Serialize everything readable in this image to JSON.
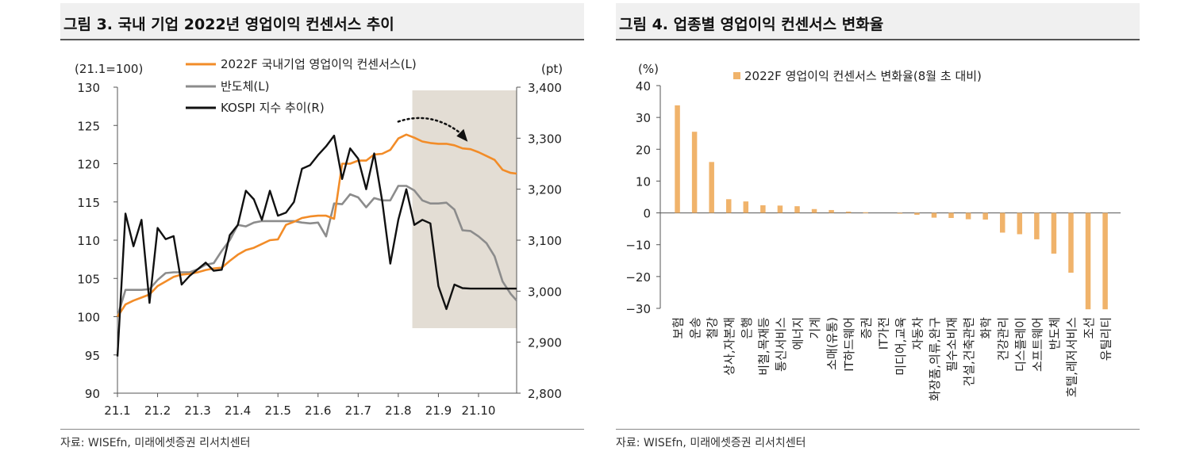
{
  "figures": {
    "left": {
      "title": "그림 3. 국내 기업 2022년 영업이익 컨센서스 추이",
      "source": "자료: WISEfn, 미래에셋증권 리서치센터"
    },
    "right": {
      "title": "그림 4. 업종별 영업이익 컨센서스 변화율",
      "source": "자료: WISEfn, 미래에셋증권 리서치센터"
    }
  },
  "colors": {
    "orange": "#f28c28",
    "gray": "#8c8c8c",
    "black": "#111111",
    "shade": "#e3ddd4",
    "bar": "#f0b36b"
  },
  "chart_data": [
    {
      "type": "line",
      "title": "그림 3. 국내 기업 2022년 영업이익 컨센서스 추이",
      "left_axis_label": "(21.1=100)",
      "right_axis_label": "(pt)",
      "ylim_left": [
        90,
        130
      ],
      "yticks_left": [
        90,
        95,
        100,
        105,
        110,
        115,
        120,
        125,
        130
      ],
      "ylim_right": [
        2800,
        3400
      ],
      "yticks_right": [
        "2,800",
        "2,900",
        "3,000",
        "3,100",
        "3,200",
        "3,300",
        "3,400"
      ],
      "yticks_right_values": [
        2800,
        2900,
        3000,
        3100,
        3200,
        3300,
        3400
      ],
      "x_tick_labels": [
        "21.1",
        "21.2",
        "21.3",
        "21.4",
        "21.5",
        "21.6",
        "21.7",
        "21.8",
        "21.9",
        "21.10"
      ],
      "x_range": [
        0,
        9.95
      ],
      "shaded_region": [
        7.35,
        9.95
      ],
      "arrow": {
        "from": [
          7.0,
          125.5
        ],
        "to": [
          8.65,
          123.5
        ]
      },
      "series": [
        {
          "name": "2022F 국내기업 영업이익 컨센서스(L)",
          "axis": "left",
          "color": "#f28c28",
          "x": [
            0.0,
            0.2,
            0.4,
            0.6,
            0.8,
            1.0,
            1.2,
            1.4,
            1.6,
            1.8,
            2.0,
            2.2,
            2.4,
            2.6,
            2.8,
            3.0,
            3.2,
            3.4,
            3.6,
            3.8,
            4.0,
            4.2,
            4.4,
            4.6,
            4.8,
            5.0,
            5.2,
            5.4,
            5.6,
            5.8,
            6.0,
            6.2,
            6.4,
            6.6,
            6.8,
            7.0,
            7.2,
            7.4,
            7.6,
            7.8,
            8.0,
            8.2,
            8.4,
            8.6,
            8.8,
            9.0,
            9.2,
            9.4,
            9.6,
            9.8,
            9.95
          ],
          "values": [
            100.0,
            101.6,
            102.1,
            102.5,
            102.9,
            104.0,
            104.6,
            105.2,
            105.5,
            105.6,
            105.8,
            106.1,
            106.3,
            106.4,
            107.3,
            108.1,
            108.7,
            109.0,
            109.5,
            110.0,
            110.1,
            112.0,
            112.4,
            112.9,
            113.1,
            113.2,
            113.2,
            112.8,
            120.0,
            120.0,
            120.4,
            120.4,
            121.2,
            121.3,
            121.8,
            123.3,
            123.8,
            123.4,
            122.9,
            122.7,
            122.6,
            122.6,
            122.4,
            122.0,
            121.9,
            121.5,
            121.0,
            120.5,
            119.2,
            118.8,
            118.7
          ]
        },
        {
          "name": "반도체(L)",
          "axis": "left",
          "color": "#8c8c8c",
          "x": [
            0.0,
            0.2,
            0.4,
            0.6,
            0.8,
            1.0,
            1.2,
            1.4,
            1.6,
            1.8,
            2.0,
            2.2,
            2.4,
            2.6,
            2.8,
            3.0,
            3.2,
            3.4,
            3.6,
            3.8,
            4.0,
            4.2,
            4.4,
            4.6,
            4.8,
            5.0,
            5.2,
            5.4,
            5.6,
            5.8,
            6.0,
            6.2,
            6.4,
            6.6,
            6.8,
            7.0,
            7.2,
            7.4,
            7.6,
            7.8,
            8.0,
            8.2,
            8.4,
            8.6,
            8.8,
            9.0,
            9.2,
            9.4,
            9.6,
            9.8,
            9.95
          ],
          "values": [
            100.0,
            103.5,
            103.5,
            103.5,
            103.6,
            104.8,
            105.7,
            105.8,
            105.8,
            105.8,
            106.2,
            106.8,
            107.0,
            108.6,
            110.0,
            112.0,
            111.8,
            112.3,
            112.5,
            112.5,
            112.5,
            112.5,
            112.5,
            112.3,
            112.2,
            112.3,
            110.5,
            114.8,
            114.7,
            116.0,
            115.6,
            114.3,
            115.5,
            115.2,
            115.2,
            117.1,
            117.1,
            116.5,
            115.2,
            114.8,
            114.8,
            114.9,
            114.0,
            111.3,
            111.2,
            110.5,
            109.6,
            107.9,
            104.6,
            103.0,
            102.1
          ]
        },
        {
          "name": "KOSPI 지수 추이(R)",
          "axis": "right",
          "color": "#111111",
          "x": [
            0.0,
            0.2,
            0.4,
            0.6,
            0.8,
            1.0,
            1.2,
            1.4,
            1.6,
            1.8,
            2.0,
            2.2,
            2.4,
            2.6,
            2.8,
            3.0,
            3.2,
            3.4,
            3.6,
            3.8,
            4.0,
            4.2,
            4.4,
            4.6,
            4.8,
            5.0,
            5.2,
            5.4,
            5.6,
            5.8,
            6.0,
            6.2,
            6.4,
            6.6,
            6.8,
            7.0,
            7.2,
            7.4,
            7.6,
            7.8,
            8.0,
            8.2,
            8.4,
            8.6,
            8.8,
            9.0,
            9.2,
            9.4,
            9.6,
            9.8,
            9.95
          ],
          "values": [
            2872,
            3152,
            3088,
            3140,
            2977,
            3124,
            3102,
            3108,
            3013,
            3030,
            3043,
            3056,
            3040,
            3042,
            3110,
            3130,
            3197,
            3180,
            3140,
            3197,
            3148,
            3154,
            3175,
            3240,
            3247,
            3267,
            3284,
            3305,
            3220,
            3280,
            3260,
            3200,
            3270,
            3177,
            3054,
            3140,
            3200,
            3130,
            3140,
            3133,
            3010,
            2965,
            3013,
            3006,
            3005,
            3005,
            3005,
            3005,
            3005,
            3005,
            3005
          ]
        }
      ]
    },
    {
      "type": "bar",
      "title": "그림 4. 업종별 영업이익 컨센서스 변화율",
      "ylabel": "(%)",
      "legend": "2022F 영업이익 컨센서스 변화율(8월 초 대비)",
      "ylim": [
        -30,
        40
      ],
      "yticks": [
        40,
        30,
        20,
        10,
        0,
        -10,
        -20,
        -30
      ],
      "categories": [
        "보험",
        "운송",
        "철강",
        "상사,자본재",
        "은행",
        "비철,목재등",
        "통신서비스",
        "에너지",
        "기계",
        "소매(유통)",
        "IT하드웨어",
        "증권",
        "IT가전",
        "미디어,교육",
        "자동차",
        "화장품,의류,완구",
        "필수소비재",
        "건설,건축관련",
        "화학",
        "건강관리",
        "디스플레이",
        "소프트웨어",
        "반도체",
        "호텔,레저서비스",
        "조선",
        "유틸리티"
      ],
      "values": [
        33.8,
        25.5,
        16.0,
        4.3,
        3.6,
        2.4,
        2.3,
        2.1,
        1.2,
        0.9,
        0.4,
        0.2,
        0.0,
        -0.2,
        -0.6,
        -1.5,
        -1.6,
        -2.0,
        -2.1,
        -6.2,
        -6.7,
        -8.3,
        -12.8,
        -18.8,
        -30.3,
        -30.3
      ]
    }
  ]
}
